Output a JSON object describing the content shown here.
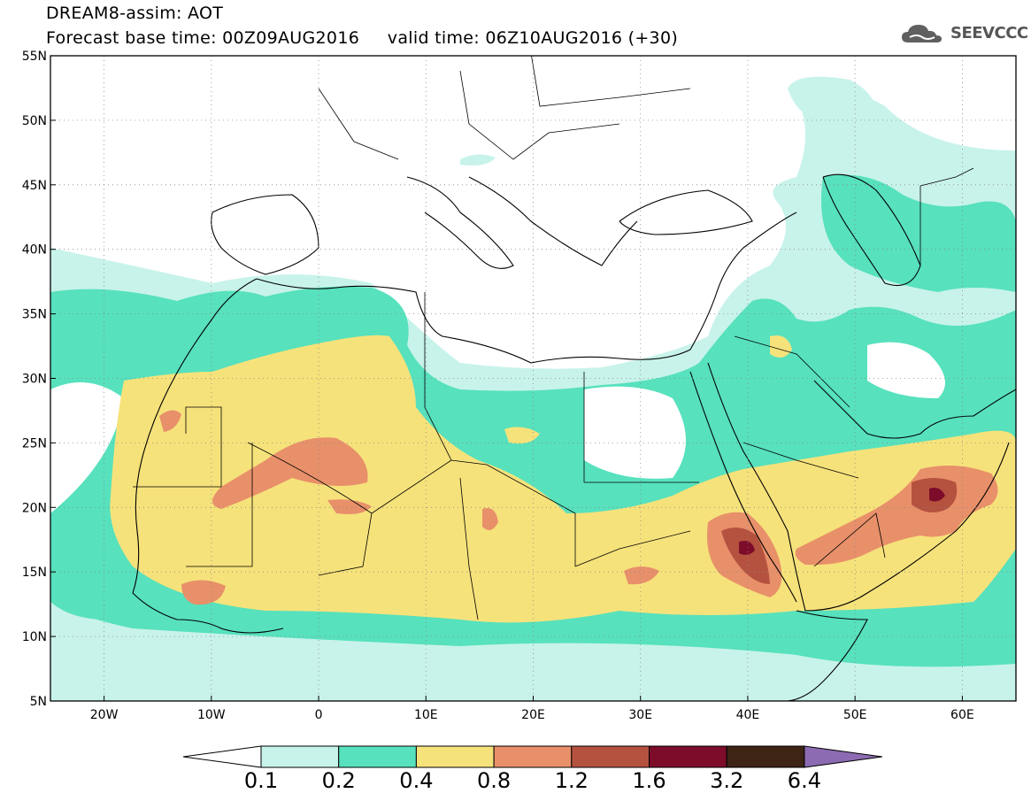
{
  "header": {
    "line1": "DREAM8-assim: AOT",
    "line2_base_label": "Forecast base time:",
    "line2_base_value": "00Z09AUG2016",
    "line2_valid_label": "valid time:",
    "line2_valid_value": "06Z10AUG2016 (+30)"
  },
  "logo": {
    "text": "SEEVCCC",
    "icon": "cloud-icon"
  },
  "map": {
    "lat_ticks": [
      "55N",
      "50N",
      "45N",
      "40N",
      "35N",
      "30N",
      "25N",
      "20N",
      "15N",
      "10N",
      "5N"
    ],
    "lon_ticks": [
      "20W",
      "10W",
      "0",
      "10E",
      "20E",
      "30E",
      "40E",
      "50E",
      "60E"
    ],
    "lon_range": [
      -25,
      65
    ],
    "lat_range": [
      5,
      55
    ],
    "grid": "dotted"
  },
  "colorbar": {
    "labels": [
      "0.1",
      "0.2",
      "0.4",
      "0.8",
      "1.2",
      "1.6",
      "3.2",
      "6.4"
    ],
    "colors": [
      "#c8f3ea",
      "#57e1bd",
      "#f6e27b",
      "#e8906a",
      "#b5523f",
      "#7d0c2a",
      "#3d2414",
      "#8c6bb2"
    ],
    "under_color": "#ffffff"
  }
}
